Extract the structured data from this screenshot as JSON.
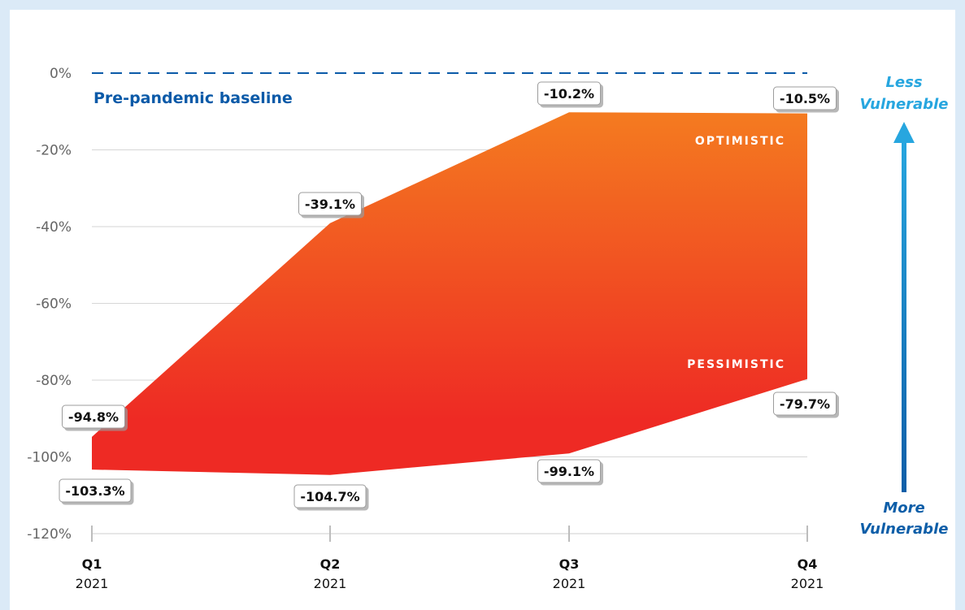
{
  "chart_data": {
    "type": "area",
    "title": "",
    "xlabel": "",
    "ylabel": "",
    "categories": [
      {
        "quarter": "Q1",
        "year": "2021"
      },
      {
        "quarter": "Q2",
        "year": "2021"
      },
      {
        "quarter": "Q3",
        "year": "2021"
      },
      {
        "quarter": "Q4",
        "year": "2021"
      }
    ],
    "series": [
      {
        "name": "OPTIMISTIC",
        "values": [
          -94.8,
          -39.1,
          -10.2,
          -10.5
        ],
        "labels": [
          "-94.8%",
          "-39.1%",
          "-10.2%",
          "-10.5%"
        ]
      },
      {
        "name": "PESSIMISTIC",
        "values": [
          -103.3,
          -104.7,
          -99.1,
          -79.7
        ],
        "labels": [
          "-103.3%",
          "-104.7%",
          "-99.1%",
          "-79.7%"
        ]
      }
    ],
    "ylim": [
      -120,
      0
    ],
    "yticks": [
      0,
      -20,
      -40,
      -60,
      -80,
      -100,
      -120
    ],
    "ytick_labels": [
      "0%",
      "-20%",
      "-40%",
      "-60%",
      "-80%",
      "-100%",
      "-120%"
    ],
    "grid": true,
    "baseline": {
      "value": 0,
      "label": "Pre-pandemic baseline"
    },
    "scale_indicator": {
      "top": [
        "Less",
        "Vulnerable"
      ],
      "bottom": [
        "More",
        "Vulnerable"
      ]
    },
    "colors": {
      "background": "#dbeaf7",
      "area_top": "#f47b20",
      "area_bottom": "#ee2a24",
      "baseline": "#0b5aa8",
      "arrow_top": "#27a6df",
      "arrow_bottom": "#0d5ea8"
    }
  }
}
